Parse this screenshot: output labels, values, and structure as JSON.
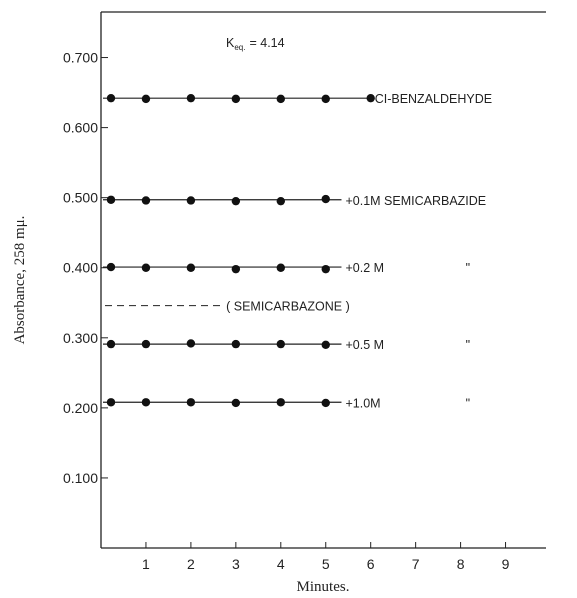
{
  "chart_data": {
    "type": "line",
    "title": "",
    "xlabel": "Minutes.",
    "ylabel": "Absorbance, 258 mμ.",
    "xlim": [
      0,
      9.9
    ],
    "ylim": [
      0.0,
      0.765
    ],
    "x_ticks": [
      1,
      2,
      3,
      4,
      5,
      6,
      7,
      8,
      9
    ],
    "x_tick_labels": [
      "1",
      "2",
      "3",
      "4",
      "5",
      "6",
      "7",
      "8",
      "9"
    ],
    "y_ticks": [
      0.1,
      0.2,
      0.3,
      0.4,
      0.5,
      0.6,
      0.7
    ],
    "y_tick_labels": [
      "0.100",
      "0.200",
      "0.300",
      "0.400",
      "0.500",
      "0.600",
      "0.700"
    ],
    "grid": false,
    "annotations": {
      "keq_label": "K",
      "keq_sub": "eq.",
      "keq_value": "= 4.14"
    },
    "series": [
      {
        "name": "CI-BENZALDEHYDE",
        "label": "CI-BENZALDEHYDE",
        "suffix": "",
        "x": [
          0,
          1,
          2,
          3,
          4,
          5,
          6
        ],
        "y": [
          0.642,
          0.641,
          0.642,
          0.641,
          0.641,
          0.641,
          0.642
        ],
        "line_x": [
          0,
          6
        ]
      },
      {
        "name": "+0.1M SEMICARBAZIDE",
        "label": "+0.1M SEMICARBAZIDE",
        "suffix": "",
        "x": [
          0,
          1,
          2,
          3,
          4,
          5
        ],
        "y": [
          0.497,
          0.496,
          0.496,
          0.495,
          0.495,
          0.498
        ],
        "line_x": [
          0,
          5.35
        ]
      },
      {
        "name": "+0.2 M",
        "label": "+0.2 M",
        "suffix": "\"",
        "x": [
          0,
          1,
          2,
          3,
          4,
          5
        ],
        "y": [
          0.401,
          0.4,
          0.4,
          0.398,
          0.4,
          0.398
        ],
        "line_x": [
          0,
          5.35
        ]
      },
      {
        "name": "+0.5 M",
        "label": "+0.5 M",
        "suffix": "\"",
        "x": [
          0,
          1,
          2,
          3,
          4,
          5
        ],
        "y": [
          0.291,
          0.291,
          0.292,
          0.291,
          0.291,
          0.29
        ],
        "line_x": [
          0,
          5.35
        ]
      },
      {
        "name": "+1.0M",
        "label": "+1.0M",
        "suffix": "\"",
        "x": [
          0,
          1,
          2,
          3,
          4,
          5
        ],
        "y": [
          0.208,
          0.208,
          0.208,
          0.207,
          0.208,
          0.207
        ],
        "line_x": [
          0,
          5.35
        ]
      }
    ],
    "reference_line": {
      "label": "( SEMICARBAZONE )",
      "y": 0.346,
      "x_start": 0,
      "x_end": 2.65
    }
  }
}
